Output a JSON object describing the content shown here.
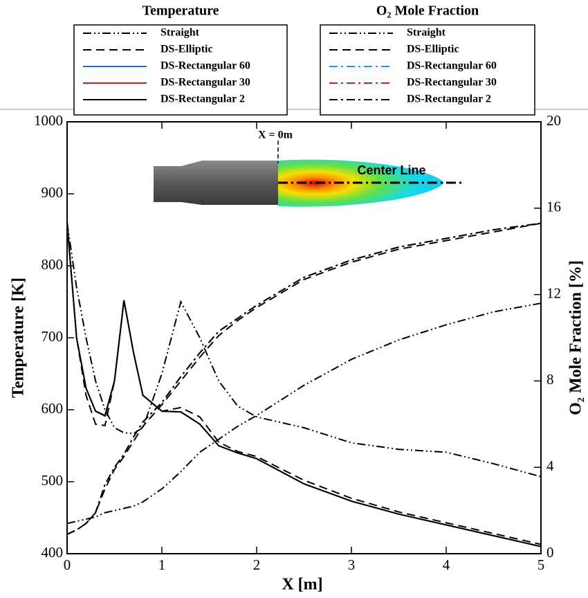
{
  "chart_data": {
    "type": "line",
    "legend_titles": [
      "Temperature",
      "O₂ Mole Fraction"
    ],
    "xlabel": "X [m]",
    "ylabel": "Temperature [K]",
    "y2label": "O₂ Mole Fraction [%]",
    "annotations": [
      "X = 0m",
      "Center Line"
    ],
    "x": [
      0,
      0.1,
      0.2,
      0.3,
      0.4,
      0.5,
      0.6,
      0.7,
      0.8,
      1.0,
      1.2,
      1.4,
      1.6,
      1.8,
      2.0,
      2.5,
      3.0,
      3.5,
      4.0,
      4.5,
      5.0
    ],
    "xlim": [
      0,
      5
    ],
    "xticks": [
      0,
      1,
      2,
      3,
      4,
      5
    ],
    "ylim": [
      400,
      1000
    ],
    "yticks": [
      400,
      500,
      600,
      700,
      800,
      900,
      1000
    ],
    "y2lim": [
      0,
      20
    ],
    "y2ticks": [
      0,
      4,
      8,
      12,
      16,
      20
    ],
    "series": [
      {
        "name": "Straight",
        "color": "#000000",
        "dash": "dash-dot-dot",
        "axis": "y",
        "values": [
          860,
          770,
          700,
          640,
          600,
          575,
          568,
          567,
          575,
          650,
          750,
          700,
          640,
          605,
          590,
          575,
          554,
          545,
          541,
          525,
          507
        ]
      },
      {
        "name": "DS-Elliptic",
        "color": "#000000",
        "dash": "dash",
        "axis": "y",
        "values": [
          860,
          700,
          620,
          580,
          578,
          640,
          752,
          680,
          620,
          598,
          603,
          590,
          555,
          542,
          535,
          502,
          477,
          458,
          443,
          428,
          413
        ]
      },
      {
        "name": "DS-Rectangular 60",
        "color": "#1f6fd6",
        "dash": "solid",
        "axis": "y",
        "values": [
          860,
          700,
          630,
          598,
          591,
          640,
          752,
          680,
          620,
          598,
          597,
          580,
          550,
          540,
          532,
          497,
          473,
          455,
          440,
          425,
          410
        ]
      },
      {
        "name": "DS-Rectangular 30",
        "color": "#d11a1a",
        "dash": "solid",
        "axis": "y",
        "values": [
          860,
          700,
          630,
          598,
          592,
          640,
          752,
          680,
          620,
          598,
          597,
          580,
          550,
          540,
          532,
          497,
          473,
          455,
          440,
          425,
          410
        ]
      },
      {
        "name": "DS-Rectangular 2",
        "color": "#000000",
        "dash": "solid",
        "axis": "y",
        "values": [
          860,
          700,
          630,
          598,
          592,
          640,
          752,
          680,
          620,
          598,
          597,
          580,
          550,
          540,
          532,
          497,
          473,
          455,
          440,
          425,
          410
        ]
      },
      {
        "name": "Straight",
        "color": "#000000",
        "dash": "dash-dot-dot",
        "axis": "y2",
        "values": [
          1.4,
          1.5,
          1.6,
          1.7,
          1.9,
          2.0,
          2.1,
          2.2,
          2.4,
          3.0,
          3.8,
          4.7,
          5.3,
          5.9,
          6.4,
          7.8,
          9.0,
          9.9,
          10.6,
          11.2,
          11.6
        ]
      },
      {
        "name": "DS-Elliptic",
        "color": "#000000",
        "dash": "dash",
        "axis": "y2",
        "values": [
          0.9,
          1.1,
          1.4,
          1.9,
          3.0,
          3.9,
          4.5,
          5.2,
          5.9,
          6.9,
          8.0,
          9.1,
          10.1,
          10.8,
          11.4,
          12.7,
          13.5,
          14.1,
          14.5,
          14.9,
          15.3
        ]
      },
      {
        "name": "DS-Rectangular 60",
        "color": "#1a9be6",
        "dash": "dash-dot",
        "axis": "y2",
        "values": [
          0.9,
          1.1,
          1.4,
          1.9,
          3.2,
          4.0,
          4.6,
          5.4,
          6.1,
          7.0,
          8.2,
          9.3,
          10.3,
          10.9,
          11.5,
          12.8,
          13.6,
          14.2,
          14.6,
          15.0,
          15.3
        ]
      },
      {
        "name": "DS-Rectangular 30",
        "color": "#d11a1a",
        "dash": "dash-dot",
        "axis": "y2",
        "values": [
          0.9,
          1.1,
          1.4,
          1.9,
          3.2,
          4.0,
          4.6,
          5.4,
          6.1,
          7.0,
          8.2,
          9.3,
          10.3,
          10.9,
          11.5,
          12.8,
          13.6,
          14.2,
          14.6,
          15.0,
          15.3
        ]
      },
      {
        "name": "DS-Rectangular 2",
        "color": "#000000",
        "dash": "dash-dot",
        "axis": "y2",
        "values": [
          0.9,
          1.1,
          1.4,
          1.9,
          3.2,
          4.0,
          4.6,
          5.4,
          6.1,
          7.0,
          8.2,
          9.3,
          10.3,
          10.9,
          11.5,
          12.8,
          13.6,
          14.2,
          14.6,
          15.0,
          15.3
        ]
      }
    ]
  }
}
